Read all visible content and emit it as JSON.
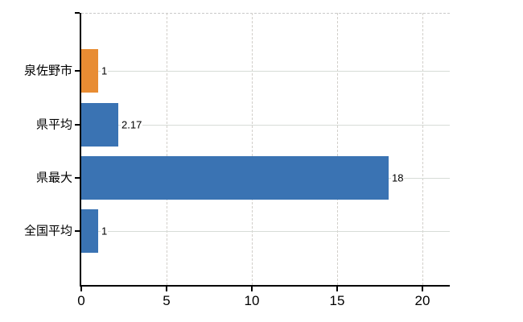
{
  "chart_data": {
    "type": "bar",
    "orientation": "horizontal",
    "title": "",
    "xlabel": "",
    "ylabel": "",
    "categories": [
      "泉佐野市",
      "県平均",
      "県最大",
      "全国平均"
    ],
    "values": [
      1,
      2.17,
      18,
      1
    ],
    "value_labels": [
      "1",
      "2.17",
      "18",
      "1"
    ],
    "bar_colors": [
      "#e88c33",
      "#3a73b3",
      "#3a73b3",
      "#3a73b3"
    ],
    "x_ticks": [
      0,
      5,
      10,
      15,
      20
    ],
    "x_tick_labels": [
      "0",
      "5",
      "10",
      "15",
      "20"
    ],
    "xlim": [
      0,
      21.6
    ],
    "grid": "on",
    "legend": "none"
  },
  "colors": {
    "bar_orange": "#e88c33",
    "bar_blue": "#3a73b3",
    "axis": "#000000",
    "h_gridline": "#d7dcd7",
    "v_gridline": "#d2cfca",
    "top_border": "#c9c9c9",
    "background": "#ffffff",
    "text": "#000000"
  }
}
